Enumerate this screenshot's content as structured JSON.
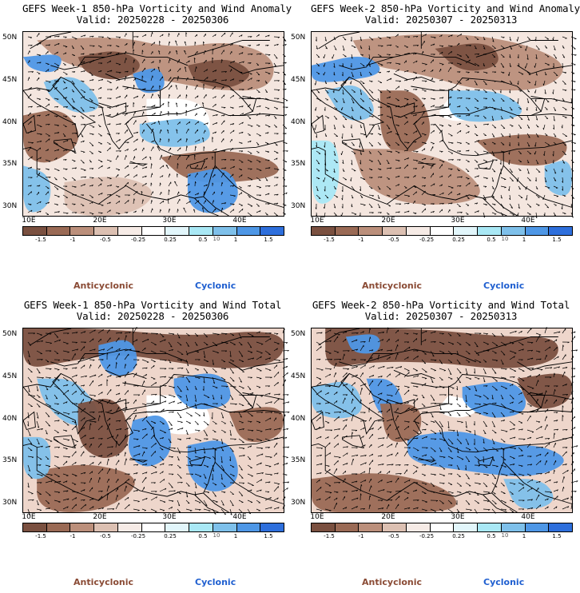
{
  "colors": {
    "anticyclonic": "#8a4b35",
    "cyclonic": "#1f5fd0",
    "colorbar": [
      "#7a5040",
      "#9a6a55",
      "#bb8f7b",
      "#dcc0b2",
      "#f6ebe6",
      "#ffffff",
      "#e2f6fb",
      "#a9e8f5",
      "#7ec0ea",
      "#4e97e6",
      "#2e6fdc"
    ]
  },
  "colorbar_labels": [
    "-1.5",
    "-1",
    "-0.5",
    "-0.25",
    "0.25",
    "0.5",
    "1",
    "1.5"
  ],
  "colorbar_unit": "10",
  "legend": {
    "anticyclonic": "Anticyclonic",
    "cyclonic": "Cyclonic"
  },
  "lat_labels": [
    "50N",
    "45N",
    "40N",
    "35N",
    "30N"
  ],
  "lon_labels": [
    "10E",
    "20E",
    "30E",
    "40E"
  ],
  "panels": [
    {
      "title": "GEFS Week-1 850-hPa Vorticity and Wind Anomaly",
      "valid": "Valid: 20250228 - 20250306"
    },
    {
      "title": "GEFS Week-2 850-hPa Vorticity and Wind Anomaly",
      "valid": "Valid: 20250307 - 20250313"
    },
    {
      "title": "GEFS Week-1 850-hPa Vorticity and Wind Total",
      "valid": "Valid: 20250228 - 20250306"
    },
    {
      "title": "GEFS Week-2 850-hPa Vorticity and Wind Total",
      "valid": "Valid: 20250307 - 20250313"
    }
  ]
}
